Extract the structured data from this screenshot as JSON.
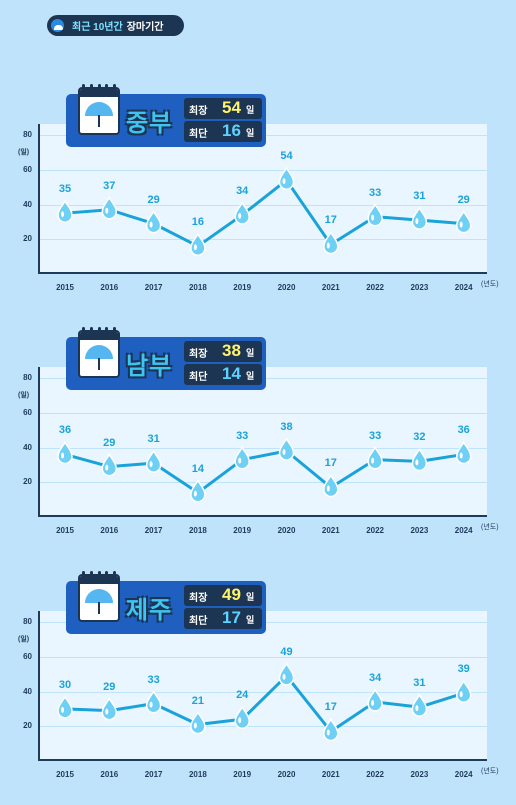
{
  "header": {
    "title_highlight": "최근 10년간",
    "title_rest": "장마기간",
    "icon": "globe-rain-icon"
  },
  "labels": {
    "max": "최장",
    "min": "최단",
    "day_unit": "일",
    "y_unit": "(일)",
    "x_unit": "(년도)"
  },
  "colors": {
    "line": "#1aa3d8",
    "drop": "#6fd0f5",
    "max_number": "#fff46b",
    "min_number": "#5fd2ff"
  },
  "chart_data": [
    {
      "type": "line",
      "region": "중부",
      "max": "54",
      "min": "16",
      "x": [
        "2015",
        "2016",
        "2017",
        "2018",
        "2019",
        "2020",
        "2021",
        "2022",
        "2023",
        "2024"
      ],
      "values": [
        35,
        37,
        29,
        16,
        34,
        54,
        17,
        33,
        31,
        29
      ],
      "ylim": [
        0,
        80
      ],
      "yticks": [
        20,
        40,
        60,
        80
      ],
      "ylabel": "(일)",
      "xlabel": "(년도)",
      "grid": true
    },
    {
      "type": "line",
      "region": "남부",
      "max": "38",
      "min": "14",
      "x": [
        "2015",
        "2016",
        "2017",
        "2018",
        "2019",
        "2020",
        "2021",
        "2022",
        "2023",
        "2024"
      ],
      "values": [
        36,
        29,
        31,
        14,
        33,
        38,
        17,
        33,
        32,
        36
      ],
      "ylim": [
        0,
        80
      ],
      "yticks": [
        20,
        40,
        60,
        80
      ],
      "ylabel": "(일)",
      "xlabel": "(년도)",
      "grid": true
    },
    {
      "type": "line",
      "region": "제주",
      "max": "49",
      "min": "17",
      "x": [
        "2015",
        "2016",
        "2017",
        "2018",
        "2019",
        "2020",
        "2021",
        "2022",
        "2023",
        "2024"
      ],
      "values": [
        30,
        29,
        33,
        21,
        24,
        49,
        17,
        34,
        31,
        39
      ],
      "ylim": [
        0,
        80
      ],
      "yticks": [
        20,
        40,
        60,
        80
      ],
      "ylabel": "(일)",
      "xlabel": "(년도)",
      "grid": true
    }
  ]
}
